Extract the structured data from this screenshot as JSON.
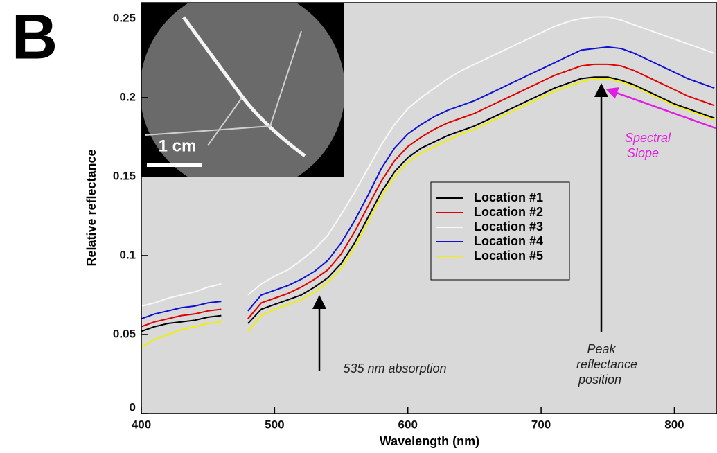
{
  "chart_data": {
    "type": "line",
    "panel_label": "B",
    "x_label": "Wavelength (nm)",
    "y_label": "Relative reflectance",
    "inset_scale": "1 cm",
    "annotations": {
      "absorption": "535 nm absorption",
      "peak": [
        "Peak",
        "reflectance",
        "position"
      ],
      "slope": [
        "Spectral",
        "Slope"
      ]
    },
    "xlim": [
      400,
      832
    ],
    "xticks": [
      400,
      500,
      600,
      700,
      800
    ],
    "ylim": [
      0,
      0.26
    ],
    "yticks": [
      0,
      0.05,
      0.1,
      0.15,
      0.2,
      0.25
    ],
    "x": [
      400,
      410,
      420,
      430,
      440,
      450,
      460,
      470,
      480,
      490,
      500,
      510,
      520,
      530,
      540,
      550,
      560,
      570,
      580,
      590,
      600,
      610,
      620,
      630,
      640,
      650,
      660,
      670,
      680,
      690,
      700,
      710,
      720,
      730,
      740,
      750,
      760,
      770,
      780,
      790,
      800,
      810,
      820,
      830
    ],
    "series": [
      {
        "name": "Location #1",
        "color": "#000000",
        "values": [
          0.052,
          0.055,
          0.057,
          0.058,
          0.059,
          0.061,
          0.062,
          null,
          0.057,
          0.066,
          0.069,
          0.072,
          0.075,
          0.08,
          0.086,
          0.095,
          0.108,
          0.124,
          0.14,
          0.153,
          0.162,
          0.168,
          0.172,
          0.176,
          0.179,
          0.182,
          0.186,
          0.19,
          0.194,
          0.198,
          0.202,
          0.206,
          0.209,
          0.212,
          0.213,
          0.213,
          0.211,
          0.208,
          0.204,
          0.2,
          0.196,
          0.193,
          0.19,
          0.187
        ]
      },
      {
        "name": "Location #2",
        "color": "#e00000",
        "values": [
          0.055,
          0.058,
          0.06,
          0.062,
          0.063,
          0.065,
          0.066,
          null,
          0.06,
          0.07,
          0.073,
          0.076,
          0.08,
          0.085,
          0.091,
          0.101,
          0.115,
          0.131,
          0.147,
          0.16,
          0.169,
          0.175,
          0.18,
          0.184,
          0.187,
          0.19,
          0.194,
          0.198,
          0.202,
          0.206,
          0.21,
          0.214,
          0.217,
          0.22,
          0.221,
          0.221,
          0.22,
          0.217,
          0.213,
          0.209,
          0.205,
          0.201,
          0.198,
          0.195
        ]
      },
      {
        "name": "Location #3",
        "color": "#f8f8f8",
        "values": [
          0.068,
          0.07,
          0.073,
          0.075,
          0.077,
          0.08,
          0.082,
          null,
          0.075,
          0.082,
          0.087,
          0.091,
          0.097,
          0.104,
          0.113,
          0.126,
          0.14,
          0.155,
          0.17,
          0.183,
          0.193,
          0.2,
          0.206,
          0.212,
          0.217,
          0.221,
          0.225,
          0.229,
          0.233,
          0.237,
          0.241,
          0.245,
          0.248,
          0.25,
          0.251,
          0.251,
          0.249,
          0.246,
          0.243,
          0.24,
          0.237,
          0.234,
          0.231,
          0.228
        ]
      },
      {
        "name": "Location #4",
        "color": "#1010d0",
        "values": [
          0.06,
          0.063,
          0.065,
          0.067,
          0.068,
          0.07,
          0.071,
          null,
          0.065,
          0.075,
          0.078,
          0.081,
          0.085,
          0.09,
          0.097,
          0.108,
          0.122,
          0.138,
          0.155,
          0.168,
          0.177,
          0.183,
          0.188,
          0.192,
          0.195,
          0.198,
          0.202,
          0.206,
          0.21,
          0.214,
          0.218,
          0.222,
          0.226,
          0.23,
          0.231,
          0.232,
          0.231,
          0.228,
          0.224,
          0.22,
          0.216,
          0.212,
          0.209,
          0.206
        ]
      },
      {
        "name": "Location #5",
        "color": "#f0f000",
        "values": [
          0.042,
          0.047,
          0.05,
          0.053,
          0.055,
          0.057,
          0.058,
          null,
          0.052,
          0.062,
          0.066,
          0.069,
          0.072,
          0.077,
          0.083,
          0.092,
          0.105,
          0.121,
          0.137,
          0.15,
          0.159,
          0.165,
          0.169,
          0.173,
          0.177,
          0.18,
          0.184,
          0.188,
          0.192,
          0.196,
          0.2,
          0.204,
          0.207,
          0.21,
          0.212,
          0.212,
          0.21,
          0.207,
          0.203,
          0.199,
          0.195,
          0.192,
          0.189,
          0.186
        ]
      }
    ]
  }
}
